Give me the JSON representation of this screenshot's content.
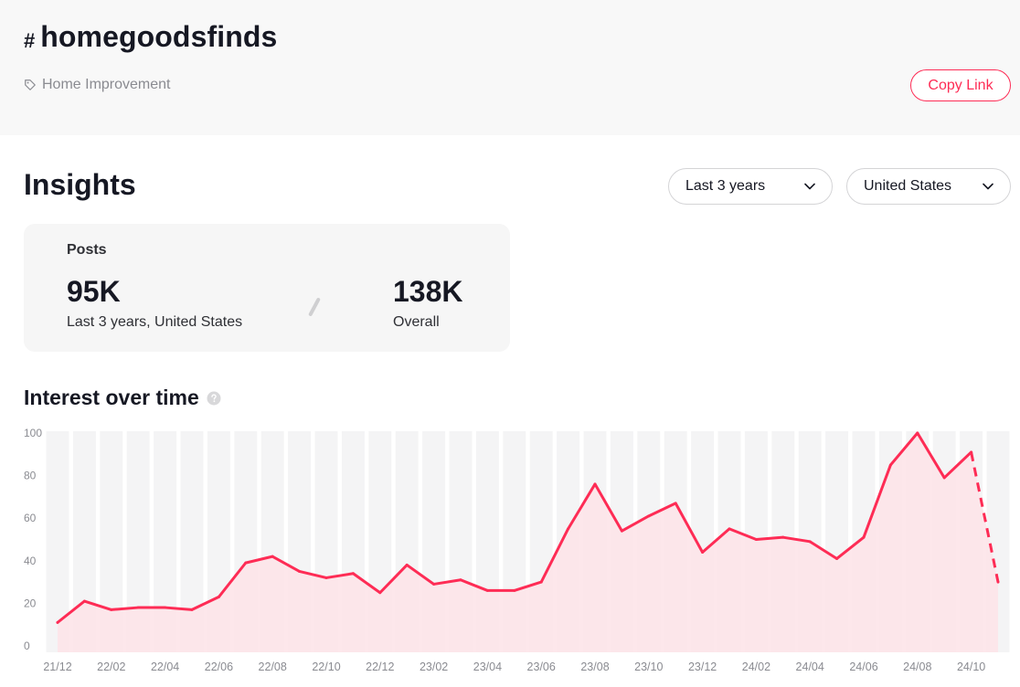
{
  "header": {
    "hash": "#",
    "title": "homegoodsfinds",
    "category": "Home Improvement",
    "copy_link": "Copy Link"
  },
  "insights": {
    "title": "Insights",
    "range_select": "Last 3 years",
    "region_select": "United States"
  },
  "posts": {
    "label": "Posts",
    "period_value": "95K",
    "period_caption": "Last 3 years, United States",
    "overall_value": "138K",
    "overall_caption": "Overall"
  },
  "interest": {
    "title": "Interest over time"
  },
  "colors": {
    "accent": "#fe2c55",
    "area_fill": "#fde3e8",
    "band_light": "#f4f4f5",
    "text_muted": "#8a8b91"
  },
  "icons": {
    "tag": "tag-icon",
    "chevron": "chevron-down-icon",
    "help": "question-circle-icon"
  },
  "chart_data": {
    "type": "area",
    "title": "Interest over time",
    "xlabel": "",
    "ylabel": "",
    "ylim": [
      0,
      100
    ],
    "y_ticks": [
      0,
      20,
      40,
      60,
      80,
      100
    ],
    "x_tick_labels": [
      "21/12",
      "22/02",
      "22/04",
      "22/06",
      "22/08",
      "22/10",
      "22/12",
      "23/02",
      "23/04",
      "23/06",
      "23/08",
      "23/10",
      "23/12",
      "24/02",
      "24/04",
      "24/06",
      "24/08",
      "24/10"
    ],
    "grid": false,
    "series": [
      {
        "values": [
          11,
          21,
          17,
          18,
          18,
          17,
          23,
          39,
          42,
          35,
          32,
          34,
          25,
          38,
          29,
          31,
          26,
          26,
          30,
          55,
          76,
          54,
          61,
          67,
          44,
          55,
          50,
          51,
          49,
          41,
          51,
          85,
          100,
          79,
          91,
          30
        ],
        "last_segment_dashed": true
      }
    ]
  }
}
